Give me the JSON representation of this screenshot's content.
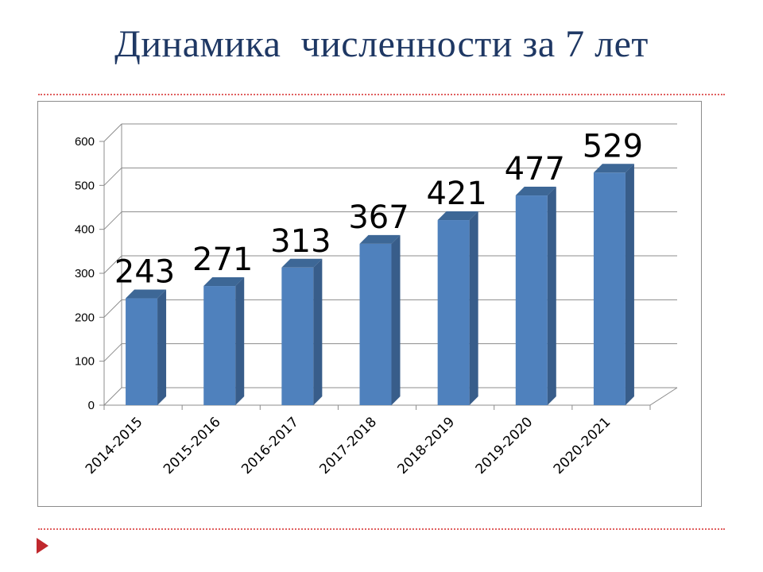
{
  "slide": {
    "title": "Динамика  численности за 7 лет"
  },
  "colors": {
    "bar_front": "#4f81bd",
    "bar_side": "#385d8a",
    "bar_top": "#3d6796",
    "title": "#1f3864",
    "rule": "#e06060",
    "marker": "#c0282d"
  },
  "icons": {
    "slide_marker": "red-triangle-bullet-icon"
  },
  "chart_data": {
    "type": "bar",
    "style": "3d-clustered-column",
    "title": "",
    "xlabel": "",
    "ylabel": "",
    "categories": [
      "2014-2015",
      "2015-2016",
      "2016-2017",
      "2017-2018",
      "2018-2019",
      "2019-2020",
      "2020-2021"
    ],
    "values": [
      243,
      271,
      313,
      367,
      421,
      477,
      529
    ],
    "data_labels": [
      "243",
      "271",
      "313",
      "367",
      "421",
      "477",
      "529"
    ],
    "ylim": [
      0,
      600
    ],
    "y_ticks": [
      "0",
      "100",
      "200",
      "300",
      "400",
      "500",
      "600"
    ],
    "grid": true,
    "legend": "none",
    "x_tick_rotation": "-45deg"
  }
}
